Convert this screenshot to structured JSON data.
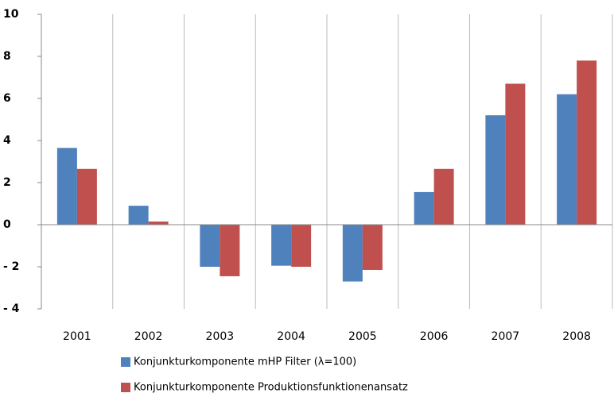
{
  "chart_data": {
    "type": "bar",
    "categories": [
      "2001",
      "2002",
      "2003",
      "2004",
      "2005",
      "2006",
      "2007",
      "2008"
    ],
    "series": [
      {
        "name": "Konjunkturkomponente mHP Filter (λ=100)",
        "color": "#4f81bd",
        "values": [
          3.65,
          0.9,
          -2.0,
          -1.95,
          -2.7,
          1.55,
          5.2,
          6.2
        ]
      },
      {
        "name": "Konjunkturkomponente Produktionsfunktionenansatz",
        "color": "#c0504d",
        "values": [
          2.65,
          0.15,
          -2.45,
          -2.0,
          -2.15,
          2.65,
          6.7,
          7.8
        ]
      }
    ],
    "ylim": [
      -4,
      10
    ],
    "yticks": [
      {
        "value": -4,
        "label": "- 4"
      },
      {
        "value": -2,
        "label": "- 2"
      },
      0,
      2,
      4,
      6,
      8,
      10
    ],
    "legend": "bottom"
  }
}
